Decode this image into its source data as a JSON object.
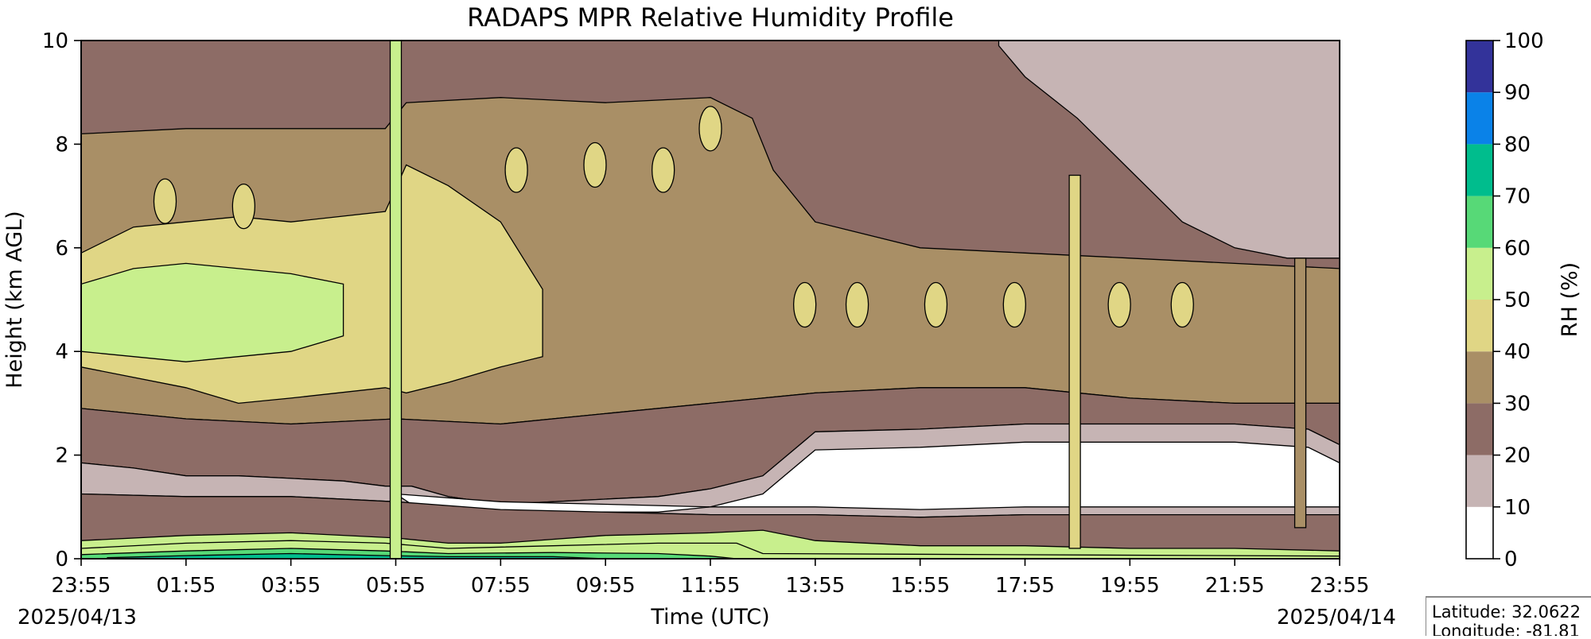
{
  "chart_data": {
    "type": "heatmap",
    "subtype": "filled-contour",
    "title": "RADAPS MPR Relative Humidity Profile",
    "xlabel": "Time (UTC)",
    "ylabel": "Height (km AGL)",
    "x_tick_labels": [
      "23:55",
      "01:55",
      "03:55",
      "05:55",
      "07:55",
      "09:55",
      "11:55",
      "13:55",
      "15:55",
      "17:55",
      "19:55",
      "21:55",
      "23:55"
    ],
    "x_tick_hours": [
      0,
      2,
      4,
      6,
      8,
      10,
      12,
      14,
      16,
      18,
      20,
      22,
      24
    ],
    "x_start_date": "2025/04/13",
    "x_end_date": "2025/04/14",
    "ylim": [
      0,
      10
    ],
    "y_ticks": [
      0,
      2,
      4,
      6,
      8,
      10
    ],
    "colorbar": {
      "label": "RH (%)",
      "levels": [
        0,
        10,
        20,
        30,
        40,
        50,
        60,
        70,
        80,
        90,
        100
      ],
      "colors": [
        "#ffffff",
        "#c6b4b4",
        "#8d6c66",
        "#a98f66",
        "#e0d685",
        "#c8ef8d",
        "#57d977",
        "#00bd8d",
        "#0a82e8",
        "#33339a"
      ]
    },
    "bands": [
      {
        "rh": 5,
        "z": [
          [
            0,
            1.85
          ],
          [
            1,
            1.75
          ],
          [
            2,
            1.6
          ],
          [
            3,
            1.6
          ],
          [
            4,
            1.55
          ],
          [
            5,
            1.5
          ],
          [
            5.8,
            1.4
          ],
          [
            6.3,
            1.4
          ],
          [
            7,
            1.2
          ],
          [
            8,
            1.05
          ],
          [
            9,
            1.1
          ],
          [
            10,
            1.15
          ],
          [
            11,
            1.2
          ],
          [
            12,
            1.35
          ],
          [
            13,
            1.6
          ],
          [
            14,
            2.45
          ],
          [
            16,
            2.5
          ],
          [
            18,
            2.6
          ],
          [
            19.8,
            2.6
          ],
          [
            22,
            2.6
          ],
          [
            23.4,
            2.5
          ],
          [
            24,
            2.2
          ]
        ],
        "base": [
          [
            0,
            1.25
          ],
          [
            2,
            1.2
          ],
          [
            4,
            1.2
          ],
          [
            6,
            1.1
          ],
          [
            8,
            0.95
          ],
          [
            10,
            0.9
          ],
          [
            12,
            0.85
          ],
          [
            14,
            0.85
          ],
          [
            16,
            0.8
          ],
          [
            18,
            0.85
          ],
          [
            20,
            0.85
          ],
          [
            22,
            0.85
          ],
          [
            24,
            0.85
          ]
        ]
      },
      {
        "rh": 50,
        "z": [
          [
            0,
            0.35
          ],
          [
            2,
            0.45
          ],
          [
            4,
            0.5
          ],
          [
            6,
            0.4
          ],
          [
            7,
            0.3
          ],
          [
            8,
            0.3
          ],
          [
            10,
            0.45
          ],
          [
            12,
            0.5
          ],
          [
            13,
            0.55
          ],
          [
            14,
            0.35
          ],
          [
            16,
            0.25
          ],
          [
            18,
            0.25
          ],
          [
            20,
            0.2
          ],
          [
            22,
            0.2
          ],
          [
            24,
            0.15
          ]
        ]
      },
      {
        "rh": 55,
        "z": [
          [
            0,
            0.2
          ],
          [
            2,
            0.3
          ],
          [
            4,
            0.35
          ],
          [
            5.8,
            0.3
          ],
          [
            7,
            0.2
          ],
          [
            9,
            0.25
          ],
          [
            11,
            0.3
          ],
          [
            12.5,
            0.3
          ],
          [
            13,
            0.1
          ],
          [
            24,
            0.05
          ]
        ]
      },
      {
        "rh": 65,
        "z": [
          [
            0,
            0.08
          ],
          [
            2,
            0.15
          ],
          [
            4,
            0.2
          ],
          [
            5.8,
            0.15
          ],
          [
            7,
            0.1
          ],
          [
            9,
            0.12
          ],
          [
            11,
            0.1
          ],
          [
            12,
            0.05
          ],
          [
            12.5,
            0
          ]
        ]
      },
      {
        "rh": 75,
        "z": [
          [
            0.5,
            0.02
          ],
          [
            2,
            0.06
          ],
          [
            4,
            0.1
          ],
          [
            5.8,
            0.06
          ],
          [
            7,
            0.04
          ],
          [
            9,
            0.04
          ],
          [
            10,
            0
          ]
        ]
      }
    ],
    "upper_boundaries": {
      "rh20_top": [
        [
          0,
          8.5
        ],
        [
          2,
          8.7
        ],
        [
          4,
          8.8
        ],
        [
          5.8,
          9.0
        ],
        [
          6.2,
          9.6
        ],
        [
          8,
          9.4
        ],
        [
          10,
          9.3
        ],
        [
          12,
          9.4
        ],
        [
          14,
          9.5
        ],
        [
          16,
          9.6
        ],
        [
          18,
          9.5
        ],
        [
          20,
          9.4
        ],
        [
          22,
          9.3
        ],
        [
          24,
          9.2
        ]
      ],
      "rh40_lo": [
        [
          0,
          3.7
        ],
        [
          2,
          3.3
        ],
        [
          3,
          3.0
        ],
        [
          4,
          3.1
        ],
        [
          5.8,
          3.3
        ],
        [
          6.2,
          3.2
        ],
        [
          7,
          3.4
        ],
        [
          8,
          3.7
        ],
        [
          8.8,
          3.9
        ]
      ],
      "rh40_hi": [
        [
          0,
          5.9
        ],
        [
          1,
          6.4
        ],
        [
          2,
          6.5
        ],
        [
          3,
          6.6
        ],
        [
          4,
          6.5
        ],
        [
          5.8,
          6.7
        ],
        [
          6.2,
          7.6
        ],
        [
          7,
          7.2
        ],
        [
          8,
          6.5
        ],
        [
          8.8,
          5.2
        ]
      ],
      "rh50_lo": [
        [
          0,
          4.0
        ],
        [
          1,
          3.9
        ],
        [
          2,
          3.8
        ],
        [
          3,
          3.9
        ],
        [
          4,
          4.0
        ],
        [
          5,
          4.3
        ]
      ],
      "rh50_hi": [
        [
          0,
          5.3
        ],
        [
          1,
          5.6
        ],
        [
          2,
          5.7
        ],
        [
          3,
          5.6
        ],
        [
          4,
          5.5
        ],
        [
          5,
          5.3
        ]
      ],
      "rh30_lo": [
        [
          0,
          2.9
        ],
        [
          2,
          2.7
        ],
        [
          4,
          2.6
        ],
        [
          6,
          2.7
        ],
        [
          8,
          2.6
        ],
        [
          10,
          2.8
        ],
        [
          12,
          3.0
        ],
        [
          14,
          3.2
        ],
        [
          16,
          3.3
        ],
        [
          18,
          3.3
        ],
        [
          20,
          3.1
        ],
        [
          22,
          3.0
        ],
        [
          24,
          3.0
        ]
      ],
      "rh30_hi": [
        [
          8.5,
          5.5
        ],
        [
          10,
          5.6
        ],
        [
          12,
          5.6
        ],
        [
          14,
          5.7
        ],
        [
          16,
          5.6
        ],
        [
          18,
          5.7
        ],
        [
          20,
          5.8
        ],
        [
          22,
          5.7
        ],
        [
          24,
          5.6
        ]
      ],
      "rh30_mid_hi": [
        [
          0,
          8.2
        ],
        [
          2,
          8.3
        ],
        [
          4,
          8.3
        ],
        [
          5.8,
          8.3
        ],
        [
          6.2,
          8.8
        ],
        [
          8,
          8.9
        ],
        [
          10,
          8.8
        ],
        [
          12,
          8.9
        ],
        [
          12.8,
          8.5
        ],
        [
          13.2,
          7.5
        ],
        [
          14,
          6.5
        ],
        [
          16,
          6.0
        ],
        [
          18,
          5.9
        ],
        [
          20,
          5.8
        ],
        [
          22,
          5.7
        ],
        [
          24,
          5.6
        ]
      ],
      "rh10_lo_upper": [
        [
          17.5,
          9.9
        ],
        [
          18,
          9.3
        ],
        [
          19,
          8.5
        ],
        [
          20,
          7.5
        ],
        [
          21,
          6.5
        ],
        [
          22,
          6.0
        ],
        [
          23,
          5.8
        ],
        [
          24,
          5.8
        ]
      ],
      "rh10_hi_upper": [
        [
          17.5,
          10
        ],
        [
          24,
          10
        ]
      ]
    },
    "moist_columns": [
      {
        "time_h": 6.0,
        "rh": 55,
        "z": [
          0,
          10
        ]
      },
      {
        "time_h": 18.95,
        "rh": 45,
        "z": [
          0.2,
          7.4
        ]
      },
      {
        "time_h": 23.25,
        "rh": 30,
        "z": [
          0.6,
          5.8
        ]
      }
    ],
    "moist_pockets": [
      {
        "time_h": 8.3,
        "height_km": 7.5,
        "rh": 45
      },
      {
        "time_h": 9.8,
        "height_km": 7.6,
        "rh": 45
      },
      {
        "time_h": 11.1,
        "height_km": 7.5,
        "rh": 45
      },
      {
        "time_h": 12.0,
        "height_km": 8.3,
        "rh": 45
      },
      {
        "time_h": 13.8,
        "height_km": 4.9,
        "rh": 45
      },
      {
        "time_h": 14.8,
        "height_km": 4.9,
        "rh": 45
      },
      {
        "time_h": 16.3,
        "height_km": 4.9,
        "rh": 45
      },
      {
        "time_h": 17.8,
        "height_km": 4.9,
        "rh": 45
      },
      {
        "time_h": 19.8,
        "height_km": 4.9,
        "rh": 45
      },
      {
        "time_h": 21.0,
        "height_km": 4.9,
        "rh": 45
      },
      {
        "time_h": 1.6,
        "height_km": 6.9,
        "rh": 45
      },
      {
        "time_h": 3.1,
        "height_km": 6.8,
        "rh": 45
      }
    ],
    "info_box": {
      "latitude_label": "Latitude: 32.0622",
      "longitude_label": "Longitude: -81.81"
    }
  }
}
